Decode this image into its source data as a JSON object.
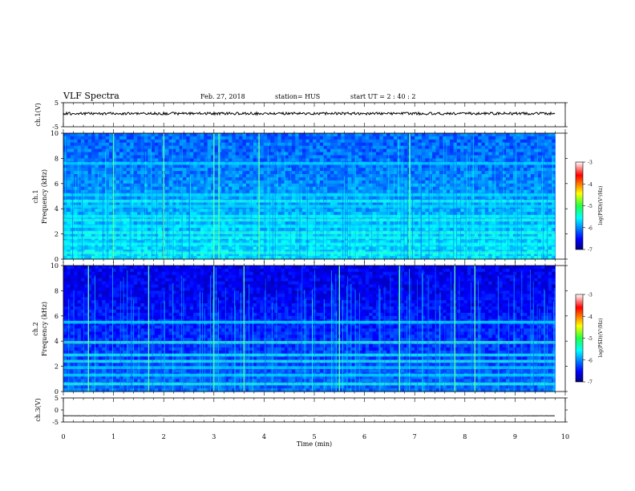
{
  "header": {
    "title": "VLF Spectra",
    "date": "Feb. 27, 2018",
    "station": "station= HUS",
    "start": "start  UT =   2 : 40 : 2"
  },
  "chart_data": [
    {
      "type": "line",
      "panel": "ch1-waveform",
      "ylabel": "ch.1(V)",
      "ylim": [
        -5,
        5
      ],
      "yticks": [
        5,
        -5
      ],
      "xlim": [
        0,
        10
      ],
      "series": [
        {
          "x": [
            0,
            9.8
          ],
          "y": [
            0.5,
            0.5
          ]
        }
      ]
    },
    {
      "type": "heatmap",
      "panel": "ch1-spectrogram",
      "ylabel": "ch.1\nFrequency  (kHz)",
      "ylim": [
        0,
        10
      ],
      "yticks": [
        0,
        2,
        4,
        6,
        8,
        10
      ],
      "xlim": [
        0,
        10
      ],
      "data_xmax": 9.8,
      "horizontal_bands_khz": [
        0.5,
        1.2,
        1.7,
        2.1,
        2.6,
        3.1,
        3.4,
        4.2,
        4.6,
        5.1,
        7.6
      ],
      "strong_bursts_min": [
        1.0,
        2.0,
        3.0,
        3.1,
        3.9,
        6.9
      ],
      "colorbar": {
        "label": "log(PSD)(V²/Hz)",
        "ticks": [
          -3,
          -4,
          -5,
          -6,
          -7
        ],
        "range": [
          -7,
          -3
        ],
        "colormap": "jet"
      }
    },
    {
      "type": "heatmap",
      "panel": "ch2-spectrogram",
      "ylabel": "ch.2\nFrequency  (kHz)",
      "ylim": [
        0,
        10
      ],
      "yticks": [
        0,
        2,
        4,
        6,
        8,
        10
      ],
      "xlim": [
        0,
        10
      ],
      "data_xmax": 9.8,
      "horizontal_bands_khz": [
        0.6,
        1.3,
        1.9,
        2.4,
        2.9,
        3.9,
        5.5
      ],
      "strong_bursts_min": [
        0.5,
        1.7,
        3.0,
        3.6,
        5.5,
        6.7,
        7.8,
        8.2
      ],
      "colorbar": {
        "label": "log(PSD)(V²/Hz)",
        "ticks": [
          -3,
          -4,
          -5,
          -6,
          -7
        ],
        "range": [
          -7,
          -3
        ],
        "colormap": "jet"
      }
    },
    {
      "type": "line",
      "panel": "ch3-waveform",
      "ylabel": "ch.3(V)",
      "ylim": [
        -5,
        5
      ],
      "yticks": [
        5,
        0,
        -5
      ],
      "xlim": [
        0,
        10
      ],
      "xlabel": "Time  (min)",
      "xticks": [
        0,
        1,
        2,
        3,
        4,
        5,
        6,
        7,
        8,
        9,
        10
      ],
      "series": [
        {
          "x": [
            0,
            9.8
          ],
          "y": [
            -2.4,
            -2.4
          ]
        }
      ]
    }
  ]
}
